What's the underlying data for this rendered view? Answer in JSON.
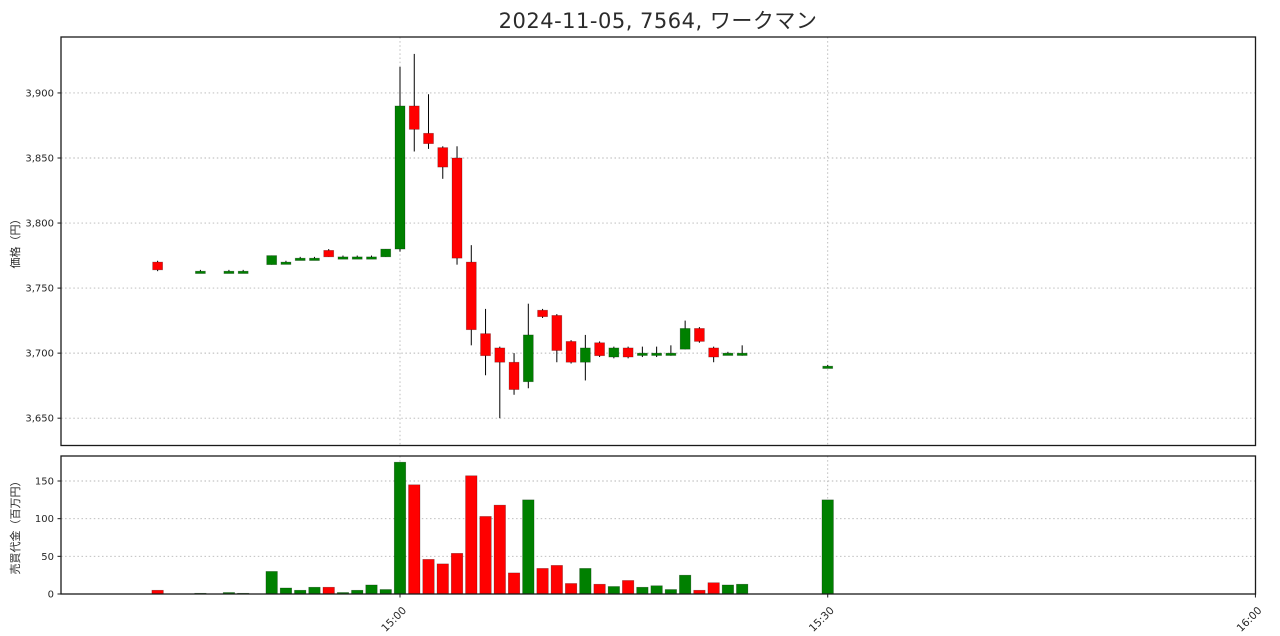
{
  "figure": {
    "title": "2024-11-05, 7564, ワークマン"
  },
  "axes": {
    "price_ylabel": "価格（円）",
    "volume_ylabel": "売買代金（百万円）",
    "price_ytick_labels": [
      "3,650",
      "3,700",
      "3,750",
      "3,800",
      "3,850",
      "3,900"
    ],
    "price_ytick_values": [
      3650,
      3700,
      3750,
      3800,
      3850,
      3900
    ],
    "volume_ytick_labels": [
      "0",
      "50",
      "100",
      "150"
    ],
    "volume_ytick_values": [
      0,
      50,
      100,
      150
    ],
    "xtick_labels": [
      "15:00",
      "15:30",
      "16:00"
    ],
    "xtick_times": [
      "15:00",
      "15:30",
      "16:00"
    ]
  },
  "colors": {
    "up": "#008000",
    "down": "#ff0000",
    "wick": "#000000",
    "grid": "#b5b5b5",
    "spine": "#1a1a1a",
    "text": "#262626"
  },
  "chart_data": [
    {
      "type": "candlestick",
      "title": "2024-11-05, 7564, ワークマン",
      "ylabel": "価格（円）",
      "ylim": [
        3629,
        3943
      ],
      "x_range": [
        "14:40",
        "16:00"
      ],
      "interval": "1min",
      "grid": true,
      "columns": [
        "time",
        "open",
        "high",
        "low",
        "close"
      ],
      "ohlc": [
        [
          "14:43",
          3770,
          3771,
          3763,
          3764
        ],
        [
          "14:46",
          3763,
          3764,
          3762,
          3763
        ],
        [
          "14:48",
          3763,
          3764,
          3762,
          3763
        ],
        [
          "14:49",
          3763,
          3764,
          3762,
          3763
        ],
        [
          "14:51",
          3768,
          3775,
          3768,
          3775
        ],
        [
          "14:52",
          3770,
          3771,
          3769,
          3770
        ],
        [
          "14:53",
          3773,
          3774,
          3772,
          3773
        ],
        [
          "14:54",
          3773,
          3774,
          3772,
          3773
        ],
        [
          "14:55",
          3779,
          3780,
          3774,
          3774
        ],
        [
          "14:56",
          3774,
          3775,
          3773,
          3774
        ],
        [
          "14:57",
          3774,
          3775,
          3773,
          3774
        ],
        [
          "14:58",
          3774,
          3775,
          3773,
          3774
        ],
        [
          "14:59",
          3774,
          3780,
          3774,
          3780
        ],
        [
          "15:00",
          3780,
          3920,
          3778,
          3890
        ],
        [
          "15:01",
          3890,
          3930,
          3855,
          3872
        ],
        [
          "15:02",
          3869,
          3899,
          3857,
          3861
        ],
        [
          "15:03",
          3858,
          3859,
          3834,
          3843
        ],
        [
          "15:04",
          3850,
          3859,
          3768,
          3773
        ],
        [
          "15:05",
          3770,
          3783,
          3706,
          3718
        ],
        [
          "15:06",
          3715,
          3734,
          3683,
          3698
        ],
        [
          "15:07",
          3704,
          3705,
          3650,
          3693
        ],
        [
          "15:08",
          3693,
          3700,
          3668,
          3672
        ],
        [
          "15:09",
          3678,
          3738,
          3673,
          3714
        ],
        [
          "15:10",
          3733,
          3734,
          3727,
          3728
        ],
        [
          "15:11",
          3729,
          3730,
          3693,
          3702
        ],
        [
          "15:12",
          3709,
          3710,
          3692,
          3693
        ],
        [
          "15:13",
          3693,
          3714,
          3679,
          3704
        ],
        [
          "15:14",
          3708,
          3709,
          3697,
          3698
        ],
        [
          "15:15",
          3697,
          3705,
          3696,
          3704
        ],
        [
          "15:16",
          3704,
          3705,
          3696,
          3697
        ],
        [
          "15:17",
          3699,
          3705,
          3697,
          3700
        ],
        [
          "15:18",
          3699,
          3705,
          3697,
          3700
        ],
        [
          "15:19",
          3700,
          3706,
          3698,
          3700
        ],
        [
          "15:20",
          3703,
          3725,
          3703,
          3719
        ],
        [
          "15:21",
          3719,
          3720,
          3708,
          3709
        ],
        [
          "15:22",
          3704,
          3705,
          3693,
          3697
        ],
        [
          "15:23",
          3700,
          3701,
          3699,
          3700
        ],
        [
          "15:24",
          3700,
          3706,
          3698,
          3700
        ],
        [
          "15:30",
          3690,
          3691,
          3689,
          3690
        ]
      ]
    },
    {
      "type": "bar",
      "ylabel": "売買代金（百万円）",
      "ylim": [
        0,
        182
      ],
      "grid": true,
      "columns": [
        "time",
        "value_million_yen"
      ],
      "values": [
        [
          "14:43",
          5
        ],
        [
          "14:46",
          1
        ],
        [
          "14:48",
          2
        ],
        [
          "14:49",
          1
        ],
        [
          "14:51",
          30
        ],
        [
          "14:52",
          8
        ],
        [
          "14:53",
          5
        ],
        [
          "14:54",
          9
        ],
        [
          "14:55",
          9
        ],
        [
          "14:56",
          2
        ],
        [
          "14:57",
          5
        ],
        [
          "14:58",
          12
        ],
        [
          "14:59",
          6
        ],
        [
          "15:00",
          175
        ],
        [
          "15:01",
          145
        ],
        [
          "15:02",
          46
        ],
        [
          "15:03",
          40
        ],
        [
          "15:04",
          54
        ],
        [
          "15:05",
          157
        ],
        [
          "15:06",
          103
        ],
        [
          "15:07",
          118
        ],
        [
          "15:08",
          28
        ],
        [
          "15:09",
          125
        ],
        [
          "15:10",
          34
        ],
        [
          "15:11",
          38
        ],
        [
          "15:12",
          14
        ],
        [
          "15:13",
          34
        ],
        [
          "15:14",
          13
        ],
        [
          "15:15",
          10
        ],
        [
          "15:16",
          18
        ],
        [
          "15:17",
          9
        ],
        [
          "15:18",
          11
        ],
        [
          "15:19",
          6
        ],
        [
          "15:20",
          25
        ],
        [
          "15:21",
          5
        ],
        [
          "15:22",
          15
        ],
        [
          "15:23",
          12
        ],
        [
          "15:24",
          13
        ],
        [
          "15:30",
          125
        ]
      ]
    }
  ]
}
